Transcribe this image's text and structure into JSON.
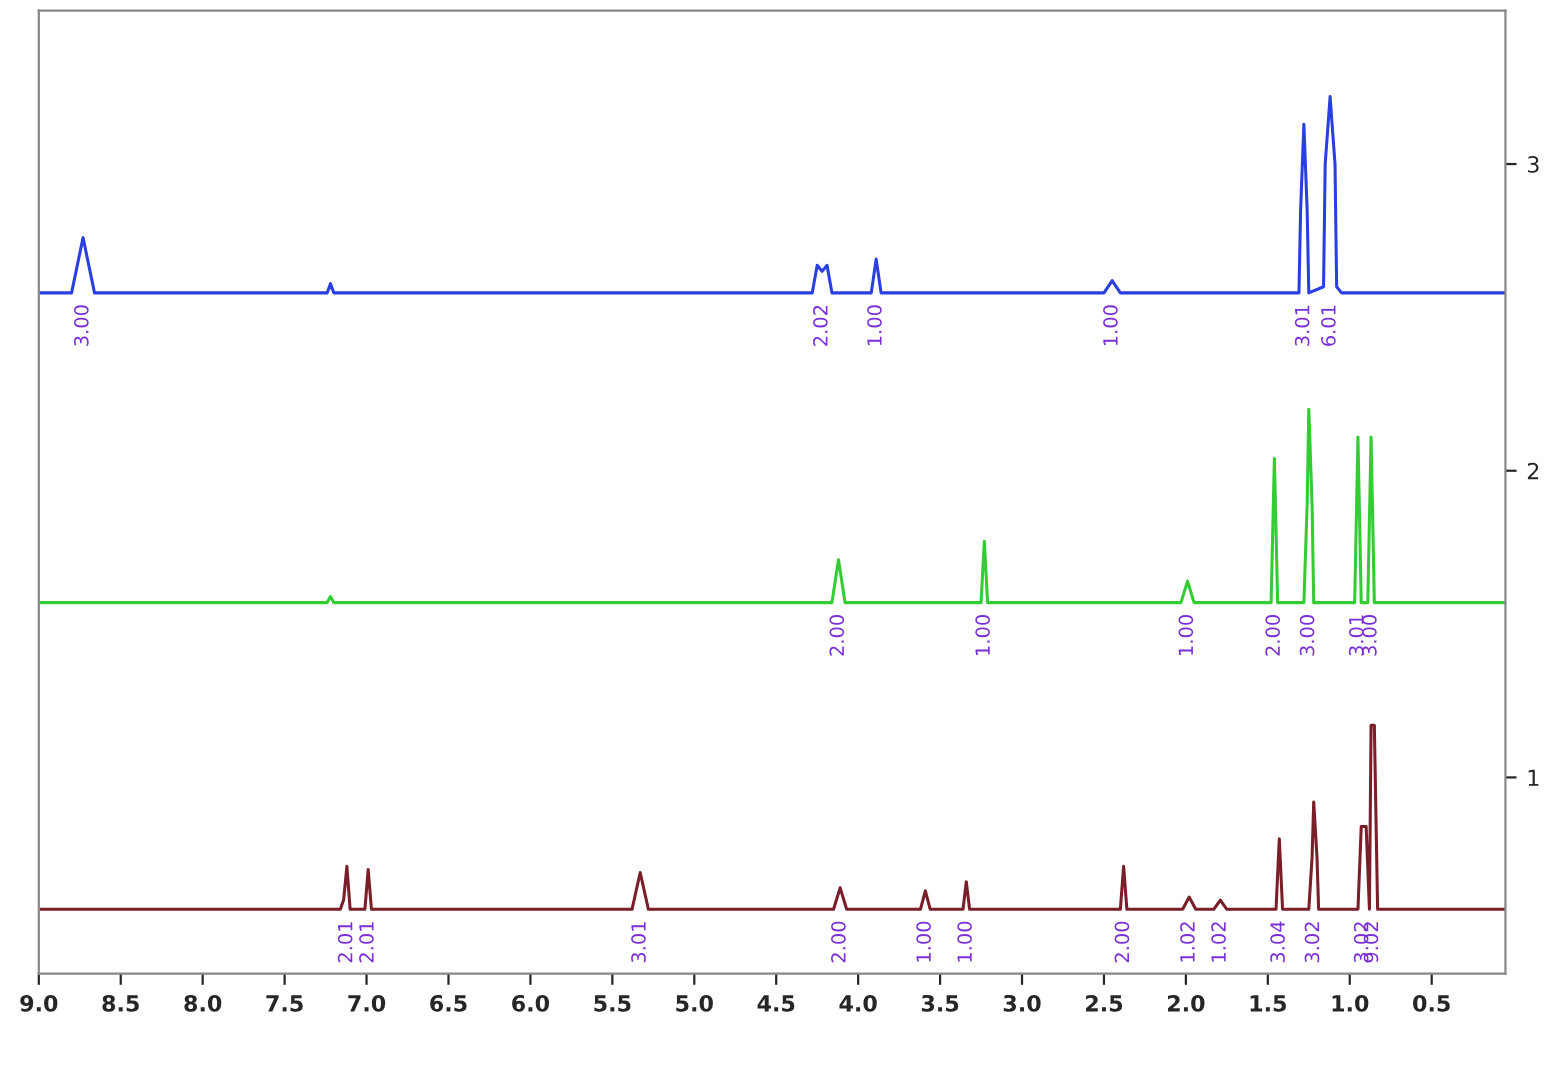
{
  "chart_data": {
    "type": "line",
    "xlim": [
      9.0,
      0.05
    ],
    "xticks": [
      {
        "value": 9,
        "label": "9.0"
      },
      8.5,
      {
        "value": 8,
        "label": "8.0"
      },
      7.5,
      {
        "value": 7,
        "label": "7.0"
      },
      6.5,
      {
        "value": 6,
        "label": "6.0"
      },
      5.5,
      {
        "value": 5,
        "label": "5.0"
      },
      4.5,
      {
        "value": 4,
        "label": "4.0"
      },
      3.5,
      {
        "value": 3,
        "label": "3.0"
      },
      2.5,
      {
        "value": 2,
        "label": "2.0"
      },
      1.5,
      {
        "value": 1,
        "label": "1.0"
      },
      0.5
    ],
    "ylim": [
      0.36,
      3.5
    ],
    "yticks": [
      1,
      2,
      3
    ],
    "grid": false,
    "legend": false,
    "marker": "none",
    "line_style": "solid",
    "series": [
      {
        "color": "#2a3fe0",
        "x": [
          9.0,
          8.8,
          8.73,
          8.66,
          7.24,
          7.22,
          7.2,
          4.28,
          4.25,
          4.22,
          4.19,
          4.16,
          3.92,
          3.89,
          3.86,
          2.5,
          2.45,
          2.4,
          1.31,
          1.3,
          1.28,
          1.26,
          1.25,
          1.16,
          1.15,
          1.12,
          1.09,
          1.08,
          1.05,
          0.05
        ],
        "values": [
          2.58,
          2.58,
          2.76,
          2.58,
          2.58,
          2.61,
          2.58,
          2.58,
          2.67,
          2.65,
          2.67,
          2.58,
          2.58,
          2.69,
          2.58,
          2.58,
          2.62,
          2.58,
          2.58,
          2.85,
          3.13,
          2.85,
          2.58,
          2.6,
          3.0,
          3.22,
          3.0,
          2.6,
          2.58,
          2.58
        ]
      },
      {
        "color": "#33cc33",
        "x": [
          9.0,
          7.24,
          7.22,
          7.2,
          4.16,
          4.12,
          4.08,
          3.25,
          3.23,
          3.21,
          2.03,
          1.99,
          1.95,
          1.48,
          1.46,
          1.44,
          1.28,
          1.26,
          1.25,
          1.23,
          1.22,
          0.97,
          0.95,
          0.93,
          0.89,
          0.87,
          0.85,
          0.05
        ],
        "values": [
          1.57,
          1.57,
          1.59,
          1.57,
          1.57,
          1.71,
          1.57,
          1.57,
          1.77,
          1.57,
          1.57,
          1.64,
          1.57,
          1.57,
          2.04,
          1.57,
          1.57,
          1.89,
          2.2,
          1.89,
          1.57,
          1.57,
          2.11,
          1.57,
          1.57,
          2.11,
          1.57,
          1.57
        ]
      },
      {
        "color": "#7a1f2a",
        "x": [
          9.0,
          7.16,
          7.14,
          7.12,
          7.1,
          7.01,
          6.99,
          6.97,
          5.38,
          5.33,
          5.28,
          4.15,
          4.11,
          4.07,
          3.62,
          3.59,
          3.56,
          3.36,
          3.34,
          3.32,
          2.4,
          2.38,
          2.36,
          2.02,
          1.98,
          1.94,
          1.83,
          1.79,
          1.75,
          1.45,
          1.43,
          1.41,
          1.25,
          1.23,
          1.22,
          1.2,
          1.19,
          0.95,
          0.93,
          0.9,
          0.88,
          0.87,
          0.85,
          0.83,
          0.05
        ],
        "values": [
          0.57,
          0.57,
          0.6,
          0.71,
          0.57,
          0.57,
          0.7,
          0.57,
          0.57,
          0.69,
          0.57,
          0.57,
          0.64,
          0.57,
          0.57,
          0.63,
          0.57,
          0.57,
          0.66,
          0.57,
          0.57,
          0.71,
          0.57,
          0.57,
          0.61,
          0.57,
          0.57,
          0.6,
          0.57,
          0.57,
          0.8,
          0.57,
          0.57,
          0.74,
          0.92,
          0.74,
          0.57,
          0.57,
          0.84,
          0.84,
          0.57,
          1.17,
          1.17,
          0.57,
          0.57
        ]
      }
    ],
    "annotations": [
      {
        "text": "3.00",
        "x": 8.73,
        "y": 2.58
      },
      {
        "text": "2.02",
        "x": 4.22,
        "y": 2.58
      },
      {
        "text": "1.00",
        "x": 3.89,
        "y": 2.58
      },
      {
        "text": "1.00",
        "x": 2.45,
        "y": 2.58
      },
      {
        "text": "3.01",
        "x": 1.28,
        "y": 2.58
      },
      {
        "text": "6.01",
        "x": 1.12,
        "y": 2.58
      },
      {
        "text": "2.00",
        "x": 4.12,
        "y": 1.57
      },
      {
        "text": "1.00",
        "x": 3.23,
        "y": 1.57
      },
      {
        "text": "1.00",
        "x": 1.99,
        "y": 1.57
      },
      {
        "text": "2.00",
        "x": 1.46,
        "y": 1.57
      },
      {
        "text": "3.00",
        "x": 1.25,
        "y": 1.57
      },
      {
        "text": "3.01",
        "x": 0.95,
        "y": 1.57
      },
      {
        "text": "3.00",
        "x": 0.87,
        "y": 1.57
      },
      {
        "text": "2.01",
        "x": 7.12,
        "y": 0.57
      },
      {
        "text": "2.01",
        "x": 6.99,
        "y": 0.57
      },
      {
        "text": "3.01",
        "x": 5.33,
        "y": 0.57
      },
      {
        "text": "2.00",
        "x": 4.11,
        "y": 0.57
      },
      {
        "text": "1.00",
        "x": 3.59,
        "y": 0.57
      },
      {
        "text": "1.00",
        "x": 3.34,
        "y": 0.57
      },
      {
        "text": "2.00",
        "x": 2.38,
        "y": 0.57
      },
      {
        "text": "1.02",
        "x": 1.98,
        "y": 0.57
      },
      {
        "text": "1.02",
        "x": 1.79,
        "y": 0.57
      },
      {
        "text": "3.04",
        "x": 1.43,
        "y": 0.57
      },
      {
        "text": "3.02",
        "x": 1.22,
        "y": 0.57
      },
      {
        "text": "3.02",
        "x": 0.92,
        "y": 0.57
      },
      {
        "text": "9.02",
        "x": 0.86,
        "y": 0.57
      }
    ]
  }
}
